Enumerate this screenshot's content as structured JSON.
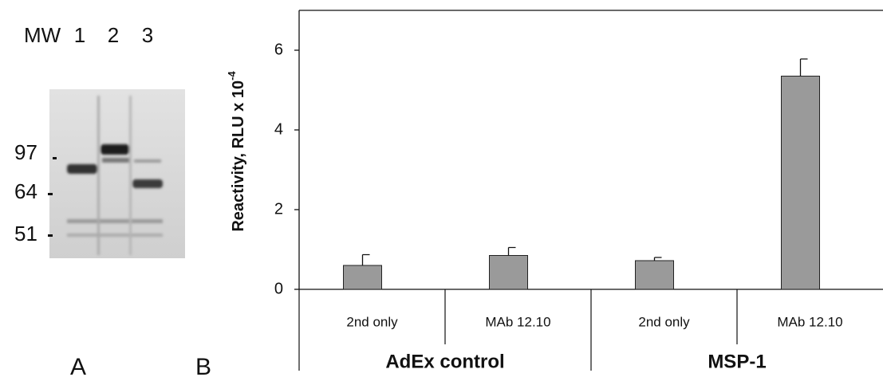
{
  "panel_a": {
    "label": "A",
    "lane_labels": [
      "MW",
      "1",
      "2",
      "3"
    ],
    "mw_markers": [
      "97",
      "64",
      "51"
    ]
  },
  "panel_b_label": "B",
  "chart_data": {
    "type": "bar",
    "ylabel": "Reactivity, RLU x 10",
    "ylabel_superscript": "-4",
    "categories": [
      "2nd only",
      "MAb 12.10",
      "2nd only",
      "MAb 12.10"
    ],
    "groups": [
      "AdEx control",
      "MSP-1"
    ],
    "values": [
      0.6,
      0.85,
      0.72,
      5.35
    ],
    "errors": [
      0.27,
      0.2,
      0.08,
      0.43
    ],
    "color": "#9a9a9a",
    "ylim": [
      0,
      7
    ],
    "yticks": [
      0,
      2,
      4,
      6
    ]
  }
}
